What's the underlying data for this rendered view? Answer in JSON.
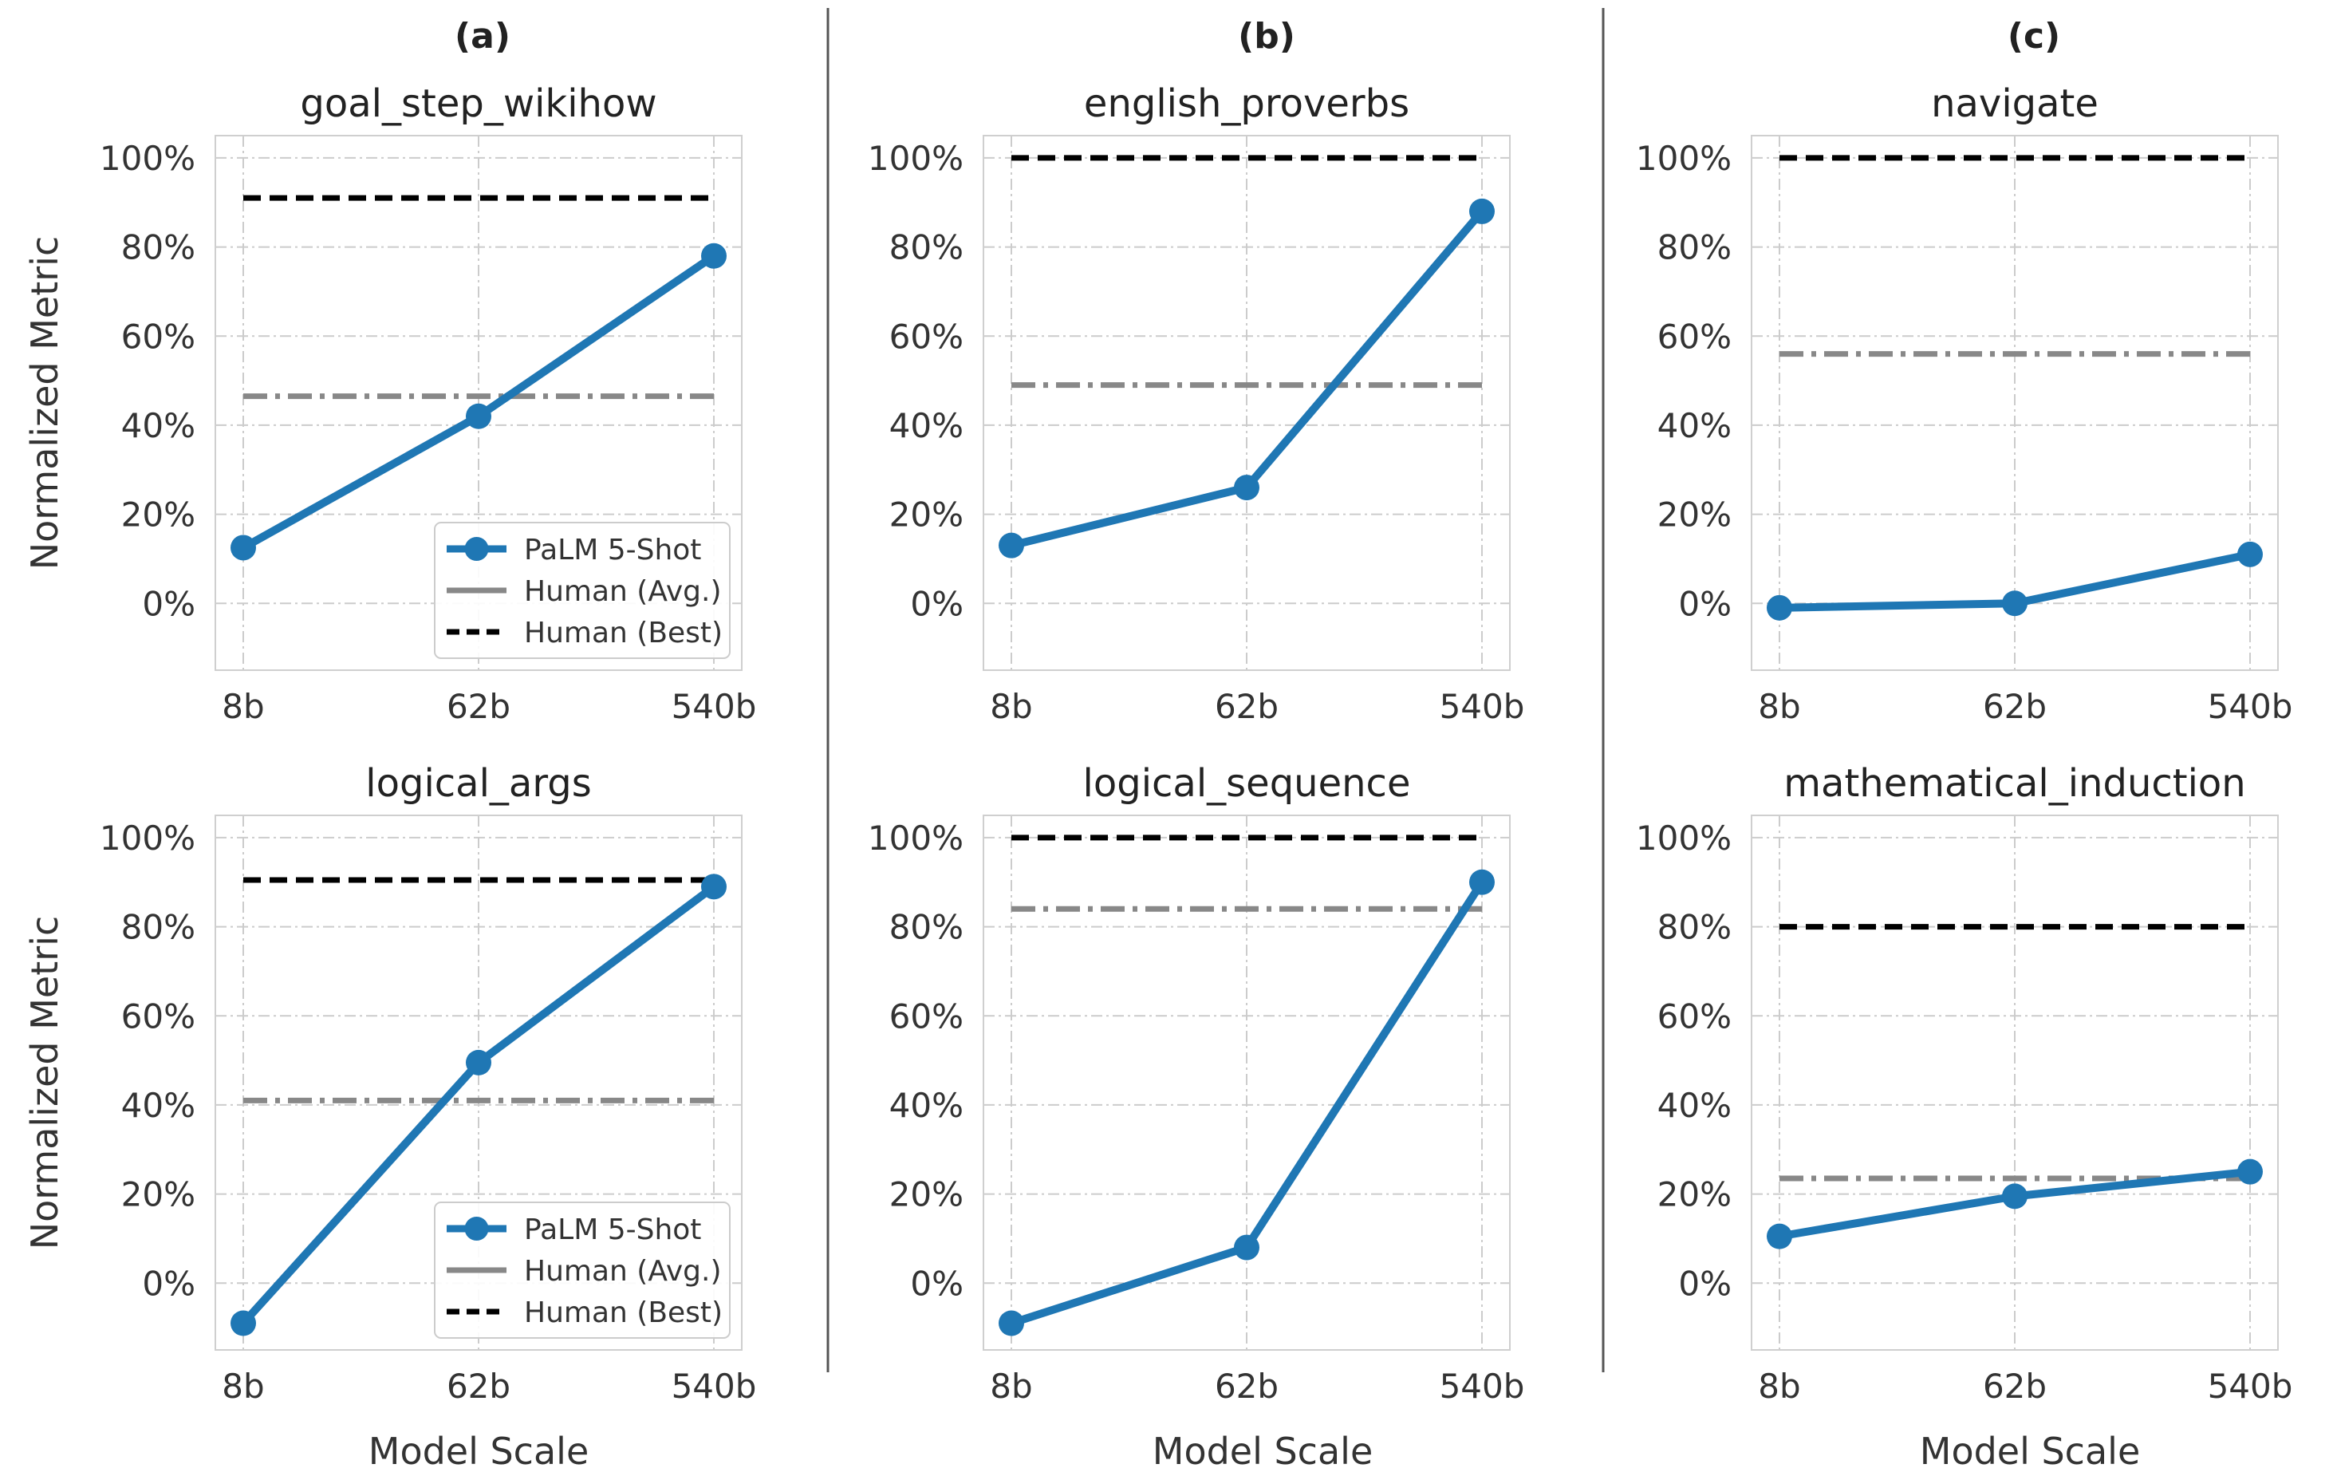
{
  "figure": {
    "column_labels": [
      "(a)",
      "(b)",
      "(c)"
    ],
    "xlabel": "Model Scale",
    "ylabel": "Normalized Metric",
    "legend": {
      "palm": "PaLM 5-Shot",
      "human_avg": "Human (Avg.)",
      "human_best": "Human (Best)"
    }
  },
  "colors": {
    "palm": "#1f77b4",
    "human_avg": "#888888",
    "human_best": "#000000",
    "grid": "#cccccc",
    "divider": "#555555"
  },
  "chart_data": [
    {
      "type": "line",
      "title": "goal_step_wikihow",
      "categories": [
        "8b",
        "62b",
        "540b"
      ],
      "series": [
        {
          "name": "PaLM 5-Shot",
          "values": [
            12.5,
            42,
            78
          ]
        }
      ],
      "human_avg": 46.5,
      "human_best": 91,
      "ylim": [
        -15,
        105
      ],
      "yticks": [
        0,
        20,
        40,
        60,
        80,
        100
      ],
      "ytick_labels": [
        "0%",
        "20%",
        "40%",
        "60%",
        "80%",
        "100%"
      ],
      "legend": "lower-right",
      "grid": true
    },
    {
      "type": "line",
      "title": "english_proverbs",
      "categories": [
        "8b",
        "62b",
        "540b"
      ],
      "series": [
        {
          "name": "PaLM 5-Shot",
          "values": [
            13,
            26,
            88
          ]
        }
      ],
      "human_avg": 49,
      "human_best": 100,
      "ylim": [
        -15,
        105
      ],
      "yticks": [
        0,
        20,
        40,
        60,
        80,
        100
      ],
      "ytick_labels": [
        "0%",
        "20%",
        "40%",
        "60%",
        "80%",
        "100%"
      ],
      "legend": "none",
      "grid": true
    },
    {
      "type": "line",
      "title": "navigate",
      "categories": [
        "8b",
        "62b",
        "540b"
      ],
      "series": [
        {
          "name": "PaLM 5-Shot",
          "values": [
            -1,
            0,
            11
          ]
        }
      ],
      "human_avg": 56,
      "human_best": 100,
      "ylim": [
        -15,
        105
      ],
      "yticks": [
        0,
        20,
        40,
        60,
        80,
        100
      ],
      "ytick_labels": [
        "0%",
        "20%",
        "40%",
        "60%",
        "80%",
        "100%"
      ],
      "legend": "none",
      "grid": true
    },
    {
      "type": "line",
      "title": "logical_args",
      "categories": [
        "8b",
        "62b",
        "540b"
      ],
      "series": [
        {
          "name": "PaLM 5-Shot",
          "values": [
            -9,
            49.5,
            89
          ]
        }
      ],
      "human_avg": 41,
      "human_best": 90.5,
      "ylim": [
        -15,
        105
      ],
      "yticks": [
        0,
        20,
        40,
        60,
        80,
        100
      ],
      "ytick_labels": [
        "0%",
        "20%",
        "40%",
        "60%",
        "80%",
        "100%"
      ],
      "legend": "lower-right",
      "grid": true
    },
    {
      "type": "line",
      "title": "logical_sequence",
      "categories": [
        "8b",
        "62b",
        "540b"
      ],
      "series": [
        {
          "name": "PaLM 5-Shot",
          "values": [
            -9,
            8,
            90
          ]
        }
      ],
      "human_avg": 84,
      "human_best": 100,
      "ylim": [
        -15,
        105
      ],
      "yticks": [
        0,
        20,
        40,
        60,
        80,
        100
      ],
      "ytick_labels": [
        "0%",
        "20%",
        "40%",
        "60%",
        "80%",
        "100%"
      ],
      "legend": "none",
      "grid": true
    },
    {
      "type": "line",
      "title": "mathematical_induction",
      "categories": [
        "8b",
        "62b",
        "540b"
      ],
      "series": [
        {
          "name": "PaLM 5-Shot",
          "values": [
            10.5,
            19.5,
            25
          ]
        }
      ],
      "human_avg": 23.5,
      "human_best": 80,
      "ylim": [
        -15,
        105
      ],
      "yticks": [
        0,
        20,
        40,
        60,
        80,
        100
      ],
      "ytick_labels": [
        "0%",
        "20%",
        "40%",
        "60%",
        "80%",
        "100%"
      ],
      "legend": "none",
      "grid": true
    }
  ]
}
